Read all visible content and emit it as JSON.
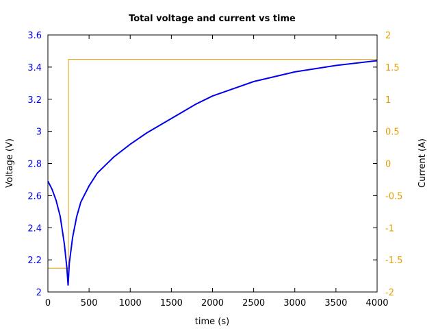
{
  "chart_data": {
    "type": "line",
    "title": "Total voltage and current vs time",
    "xlabel": "time (s)",
    "ylabel": "Voltage (V)",
    "y2label": "Current (A)",
    "xlim": [
      0,
      4000
    ],
    "ylim": [
      2,
      3.6
    ],
    "y2lim": [
      -2,
      2
    ],
    "grid": false,
    "legend": null,
    "x_ticks": [
      "0",
      "500",
      "1000",
      "1500",
      "2000",
      "2500",
      "3000",
      "3500",
      "4000"
    ],
    "y_ticks": [
      "2",
      "2.2",
      "2.4",
      "2.6",
      "2.8",
      "3",
      "3.2",
      "3.4",
      "3.6"
    ],
    "y2_ticks": [
      "-2",
      "-1.5",
      "-1",
      "-0.5",
      "0",
      "0.5",
      "1",
      "1.5",
      "2"
    ],
    "series": [
      {
        "name": "Voltage",
        "axis": "left",
        "color": "#0000ee",
        "x": [
          0,
          50,
          100,
          150,
          200,
          230,
          245,
          260,
          300,
          350,
          400,
          500,
          600,
          700,
          800,
          1000,
          1200,
          1500,
          1800,
          2000,
          2500,
          3000,
          3500,
          4000
        ],
        "values": [
          2.69,
          2.64,
          2.57,
          2.47,
          2.3,
          2.15,
          2.04,
          2.18,
          2.34,
          2.47,
          2.56,
          2.66,
          2.74,
          2.79,
          2.84,
          2.92,
          2.99,
          3.08,
          3.17,
          3.22,
          3.31,
          3.37,
          3.41,
          3.44
        ]
      },
      {
        "name": "Current",
        "axis": "right",
        "color": "#e69f00",
        "x": [
          0,
          250,
          250,
          4000
        ],
        "values": [
          -1.63,
          -1.63,
          1.62,
          1.62
        ]
      }
    ]
  }
}
